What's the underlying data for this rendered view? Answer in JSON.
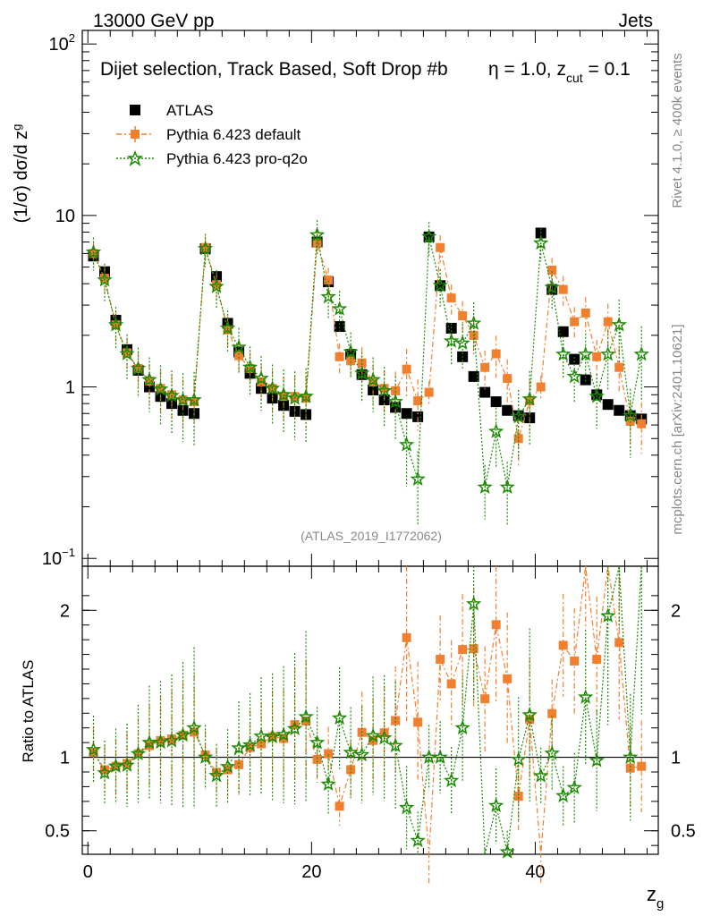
{
  "header": {
    "left": "13000 GeV pp",
    "right": "Jets"
  },
  "title": "Dijet selection, Track Based, Soft Drop #b",
  "title_extra": {
    "eta": "η = 1.0, z",
    "cut_sub": "cut",
    "cut_val": " = 0.1"
  },
  "watermark": "(ATLAS_2019_I1772062)",
  "side_right_top": "Rivet 4.1.0, ≥ 400k events",
  "side_right_bottom": "mcplots.cern.ch [arXiv:2401.10621]",
  "ratio_ylabel": "Ratio to ATLAS",
  "main_ylabel": {
    "a": "(1/σ) dσ/d z",
    "sub": "g"
  },
  "xlabel": {
    "a": "z",
    "sub": "g"
  },
  "legend": [
    "ATLAS",
    "Pythia 6.423 default",
    "Pythia 6.423 pro-q2o"
  ],
  "colors": {
    "data": "#000000",
    "default": "#f08030",
    "proq2o": "#1a8a00",
    "watermark": "#888888",
    "side": "#888888"
  },
  "chart_data": {
    "type": "scatter",
    "log_y": true,
    "ylim": [
      0.09,
      120
    ],
    "xlim": [
      -0.5,
      51
    ],
    "ratio_ylim": [
      0.34,
      2.3
    ],
    "x_ticks": [
      0,
      20,
      40
    ],
    "y_ticks": [
      "10^-1",
      "1",
      "10",
      "10^2"
    ],
    "ratio_ticks": [
      0.5,
      1,
      2
    ],
    "x": [
      0.5,
      1.5,
      2.5,
      3.5,
      4.5,
      5.5,
      6.5,
      7.5,
      8.5,
      9.5,
      10.5,
      11.5,
      12.5,
      13.5,
      14.5,
      15.5,
      16.5,
      17.5,
      18.5,
      19.5,
      20.5,
      21.5,
      22.5,
      23.5,
      24.5,
      25.5,
      26.5,
      27.5,
      28.5,
      29.5,
      30.5,
      31.5,
      32.5,
      33.5,
      34.5,
      35.5,
      36.5,
      37.5,
      38.5,
      39.5,
      40.5,
      41.5,
      42.5,
      43.5,
      44.5,
      45.5,
      46.5,
      47.5,
      48.5,
      49.5
    ],
    "series": [
      {
        "name": "ATLAS",
        "values": [
          5.8,
          4.7,
          2.45,
          1.65,
          1.25,
          1.0,
          0.88,
          0.8,
          0.73,
          0.7,
          6.4,
          4.4,
          2.35,
          1.6,
          1.2,
          0.98,
          0.86,
          0.78,
          0.72,
          0.69,
          7.0,
          4.1,
          2.25,
          1.55,
          1.18,
          0.96,
          0.84,
          0.76,
          0.7,
          0.67,
          7.5,
          3.9,
          2.2,
          1.5,
          1.15,
          0.93,
          0.82,
          0.73,
          0.68,
          0.66,
          7.9,
          3.7,
          2.1,
          1.45,
          1.1,
          0.9,
          0.79,
          0.73,
          0.68,
          0.65
        ]
      },
      {
        "name": "Pythia 6.423 default",
        "values": [
          6.0,
          4.3,
          2.3,
          1.58,
          1.28,
          1.08,
          0.98,
          0.9,
          0.84,
          0.82,
          6.5,
          3.95,
          2.15,
          1.52,
          1.28,
          1.07,
          0.98,
          0.88,
          0.88,
          0.86,
          6.9,
          4.2,
          1.5,
          1.42,
          1.38,
          1.07,
          0.98,
          0.95,
          1.27,
          0.83,
          0.93,
          6.5,
          3.3,
          2.6,
          2.0,
          1.3,
          1.56,
          1.12,
          0.5,
          0.83,
          1.0,
          4.8,
          3.7,
          2.4,
          2.7,
          1.5,
          2.4,
          1.3,
          0.63,
          0.61
        ]
      },
      {
        "name": "Pythia 6.423 pro-q2o",
        "values": [
          6.1,
          4.2,
          2.3,
          1.56,
          1.28,
          1.1,
          0.97,
          0.89,
          0.84,
          0.84,
          6.4,
          3.85,
          2.2,
          1.7,
          1.3,
          1.12,
          0.98,
          0.9,
          0.86,
          0.88,
          7.7,
          3.35,
          2.85,
          1.6,
          1.2,
          1.1,
          0.95,
          0.82,
          0.46,
          0.29,
          7.5,
          3.9,
          1.85,
          1.8,
          2.35,
          0.26,
          0.55,
          0.26,
          0.67,
          0.85,
          6.9,
          3.8,
          1.55,
          1.15,
          1.55,
          0.88,
          1.55,
          2.3,
          0.68,
          1.55
        ]
      }
    ]
  }
}
